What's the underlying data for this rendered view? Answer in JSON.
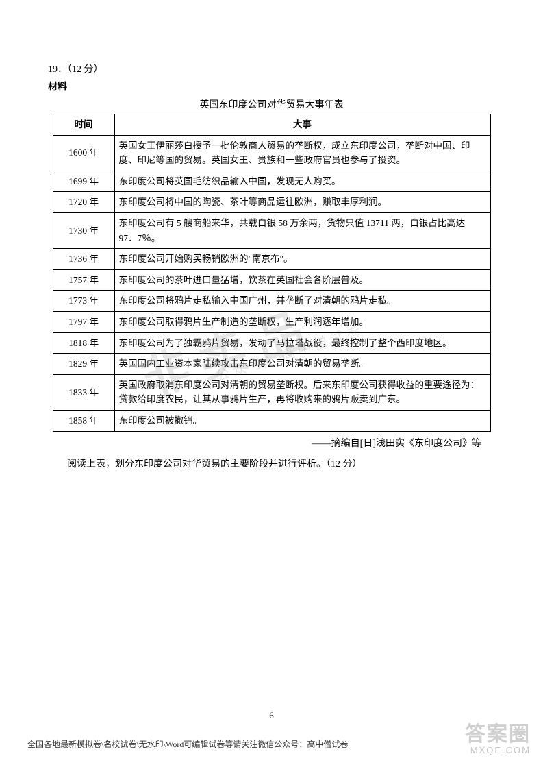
{
  "question": {
    "number": "19．（12 分）",
    "material_label": "材料",
    "table_title": "英国东印度公司对华贸易大事年表",
    "headers": {
      "time": "时间",
      "event": "大事"
    },
    "rows": [
      {
        "time": "1600 年",
        "event": "英国女王伊丽莎白授予一批伦敦商人贸易的垄断权，成立东印度公司，垄断对中国、印度、印尼等国的贸易。英国女王、贵族和一些政府官员也参与了投资。"
      },
      {
        "time": "1699 年",
        "event": "东印度公司将英国毛纺织品输入中国，发现无人购买。"
      },
      {
        "time": "1720 年",
        "event": "东印度公司将中国的陶瓷、茶叶等商品运往欧洲，赚取丰厚利润。"
      },
      {
        "time": "1730 年",
        "event": "东印度公司有 5 艘商船来华，共载白银 58 万余两，货物只值 13711 两，白银占比高达 97．7％。"
      },
      {
        "time": "1736 年",
        "event": "东印度公司开始购买畅销欧洲的\"南京布\"。"
      },
      {
        "time": "1757 年",
        "event": "东印度公司的茶叶进口量猛增，饮茶在英国社会各阶层普及。"
      },
      {
        "time": "1773 年",
        "event": "东印度公司将鸦片走私输入中国广州，并垄断了对清朝的鸦片走私。"
      },
      {
        "time": "1797 年",
        "event": "东印度公司取得鸦片生产制造的垄断权，生产利润逐年增加。"
      },
      {
        "time": "1818  年",
        "event": "东印度公司为了独霸鸦片贸易，发动了马拉塔战役，最终控制了整个西印度地区。"
      },
      {
        "time": "1829 年",
        "event": "英国国内工业资本家陆续攻击东印度公司对清朝的贸易垄断。"
      },
      {
        "time": "1833 年",
        "event": "英国政府取消东印度公司对清朝的贸易垄断权。后来东印度公司获得收益的重要途径为：贷款给印度农民，让其从事鸦片生产，再将收购来的鸦片贩卖到广东。"
      },
      {
        "time": "1858 年",
        "event": "东印度公司被撤销。"
      }
    ],
    "source": "——摘编自[日]浅田实《东印度公司》等",
    "instruction": "阅读上表，划分东印度公司对华贸易的主要阶段并进行评析。（12 分）"
  },
  "page_number": "6",
  "footer": "全国各地最新模拟卷\\名校试卷\\无水印\\Word可编辑试卷等请关注微信公众号：高中僧试卷",
  "watermark_main": "非卖品",
  "watermark_sub": "公 众 号 ： 高 中 僧 试 卷",
  "corner": {
    "big": "答案圈",
    "small": "MXQE.COM"
  }
}
